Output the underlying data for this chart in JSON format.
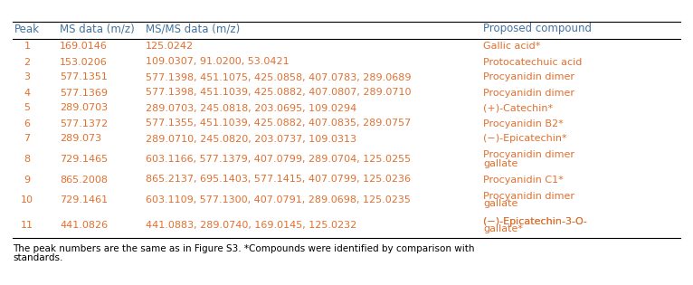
{
  "headers": [
    "Peak",
    "MS data (m/z)",
    "MS/MS data (m/z)",
    "Proposed compound"
  ],
  "rows": [
    {
      "peak": "1",
      "ms": "169.0146",
      "msms": "125.0242",
      "compound": [
        "Gallic acid*"
      ],
      "color": "#e07030"
    },
    {
      "peak": "2",
      "ms": "153.0206",
      "msms": "109.0307, 91.0200, 53.0421",
      "compound": [
        "Protocatechuic acid"
      ],
      "color": "#e07030"
    },
    {
      "peak": "3",
      "ms": "577.1351",
      "msms": "577.1398, 451.1075, 425.0858, 407.0783, 289.0689",
      "compound": [
        "Procyanidin dimer"
      ],
      "color": "#e07030"
    },
    {
      "peak": "4",
      "ms": "577.1369",
      "msms": "577.1398, 451.1039, 425.0882, 407.0807, 289.0710",
      "compound": [
        "Procyanidin dimer"
      ],
      "color": "#e07030"
    },
    {
      "peak": "5",
      "ms": "289.0703",
      "msms": "289.0703, 245.0818, 203.0695, 109.0294",
      "compound": [
        "(+)-Catechin*"
      ],
      "color": "#e07030"
    },
    {
      "peak": "6",
      "ms": "577.1372",
      "msms": "577.1355, 451.1039, 425.0882, 407.0835, 289.0757",
      "compound": [
        "Procyanidin B2*"
      ],
      "color": "#e07030"
    },
    {
      "peak": "7",
      "ms": "289.073",
      "msms": "289.0710, 245.0820, 203.0737, 109.0313",
      "compound": [
        "(−)-Epicatechin*"
      ],
      "color": "#e07030"
    },
    {
      "peak": "8",
      "ms": "729.1465",
      "msms": "603.1166, 577.1379, 407.0799, 289.0704, 125.0255",
      "compound": [
        "Procyanidin dimer",
        "gallate"
      ],
      "color": "#e07030"
    },
    {
      "peak": "9",
      "ms": "865.2008",
      "msms": "865.2137, 695.1403, 577.1415, 407.0799, 125.0236",
      "compound": [
        "Procyanidin C1*"
      ],
      "color": "#e07030"
    },
    {
      "peak": "10",
      "ms": "729.1461",
      "msms": "603.1109, 577.1300, 407.0791, 289.0698, 125.0235",
      "compound": [
        "Procyanidin dimer",
        "gallate"
      ],
      "color": "#e07030"
    },
    {
      "peak": "11",
      "ms": "441.0826",
      "msms": "441.0883, 289.0740, 169.0145, 125.0232",
      "compound": [
        "(−)-Epicatechin-3-Ο-",
        "gallate*"
      ],
      "color": "#e07030"
    }
  ],
  "footnote_line1": "The peak numbers are the same as in Figure S3. *Compounds were identified by comparison with",
  "footnote_line2": "standards.",
  "header_color": "#4472a0",
  "data_color": "#e07030",
  "footnote_color": "#000000",
  "bg_color": "#ffffff",
  "figw": 7.66,
  "figh": 3.15,
  "dpi": 100
}
